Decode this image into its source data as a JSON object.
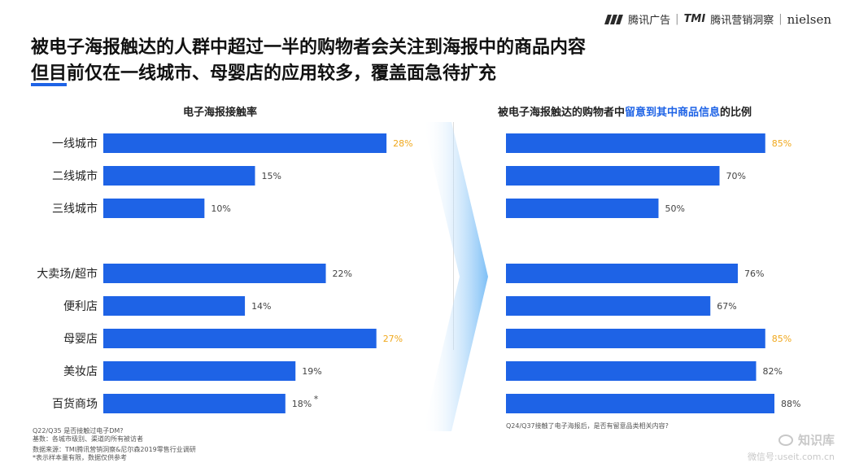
{
  "brand": {
    "tencent": "腾讯广告",
    "sep1": "|",
    "tmi": "TMI",
    "insight": "腾讯营销洞察",
    "sep2": "|",
    "nielsen": "nielsen"
  },
  "title_line1": "被电子海报触达的人群中超过一半的购物者会关注到海报中的商品内容",
  "title_line2": "但目前仅在一线城市、母婴店的应用较多，覆盖面急待扩充",
  "accent_color": "#1e63e6",
  "highlight_color": "#f0a81c",
  "chart_data": [
    {
      "type": "bar",
      "orientation": "horizontal",
      "title": "电子海报接触率",
      "categories": [
        "一线城市",
        "二线城市",
        "三线城市",
        "大卖场/超市",
        "便利店",
        "母婴店",
        "美妆店",
        "百货商场"
      ],
      "values": [
        28,
        15,
        10,
        22,
        14,
        27,
        19,
        18
      ],
      "value_labels": [
        "28%",
        "15%",
        "10%",
        "22%",
        "14%",
        "27%",
        "19%",
        "18%"
      ],
      "highlighted": [
        "一线城市",
        "母婴店"
      ],
      "annotation": {
        "category": "百货商场",
        "text": "*"
      },
      "xlim": [
        0,
        30
      ],
      "grid": false
    },
    {
      "type": "bar",
      "orientation": "horizontal",
      "title_parts": [
        "被电子海报触达的购物者中",
        "留意到其中商品信息",
        "的比例"
      ],
      "categories": [
        "一线城市",
        "二线城市",
        "三线城市",
        "大卖场/超市",
        "便利店",
        "母婴店",
        "美妆店",
        "百货商场"
      ],
      "values": [
        85,
        70,
        50,
        76,
        67,
        85,
        82,
        88
      ],
      "value_labels": [
        "85%",
        "70%",
        "50%",
        "76%",
        "67%",
        "85%",
        "82%",
        "88%"
      ],
      "highlighted": [
        "一线城市",
        "母婴店"
      ],
      "xlim": [
        0,
        100
      ],
      "grid": false
    }
  ],
  "footnotes_left": [
    "Q22/Q35 是否接触过电子DM?",
    "基数：各城市级别、渠道的所有被访者",
    "数据来源：TMI腾讯营销洞察&尼尔森2019零售行业调研",
    "*表示样本量有限，数据仅供参考"
  ],
  "footnote_right": "Q24/Q37接触了电子海报后，是否有留意品类相关内容?",
  "watermark": {
    "top": "知识库",
    "bottom": "微信号:useit.com.cn"
  }
}
